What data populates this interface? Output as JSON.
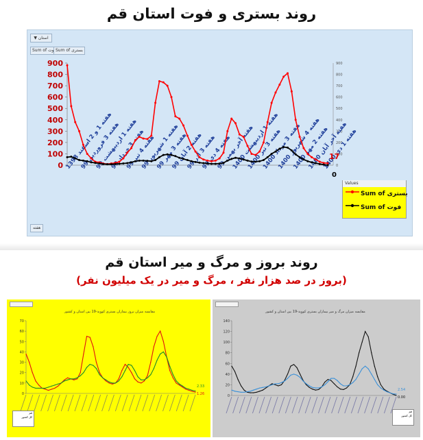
{
  "title_top": "روند بستری و فوت استان قم",
  "title_bottom": "روند بروز و مرگ و میر استان قم",
  "subtitle_bottom": "(بروز در صد هزار نفر ، مرگ و میر در یک میلیون نفر)",
  "top_panel": {
    "filter_label": "استان",
    "tags": [
      "Sum of فوت",
      "Sum of بستری"
    ],
    "week_button": "هفته",
    "legend_title": "Values",
    "legend": [
      {
        "label": "Sum of بستری",
        "color": "#ff0000"
      },
      {
        "label": "Sum of فوت",
        "color": "#000000"
      }
    ],
    "last_value_hosp": "17",
    "last_value_death": "0"
  },
  "chart_data": [
    {
      "type": "line",
      "ylim": [
        0,
        900
      ],
      "y2lim": [
        0,
        900
      ],
      "yticks": [
        0,
        100,
        200,
        300,
        400,
        500,
        600,
        700,
        800,
        900
      ],
      "y2ticks": [
        0,
        100,
        200,
        300,
        400,
        500,
        600,
        700,
        800,
        900
      ],
      "x_tick_labels": [
        "هفته 1 و 2 اسفند 1398",
        "هفته 3 فروردین 99",
        "هفته 1 اردیبهشت 99",
        "هفته 3 خرداد 99",
        "هفته 4 تیر 99",
        "هفته 1 شهریور 99",
        "هفته 3 مهر 99",
        "هفته 2 آبان 99",
        "هفته 3 آذر 99",
        "هفته 4 دی 99",
        "هفته آخر بهمن 99",
        "هفته 1 اردیبهشت 1400",
        "هفته 3 تیر 1400",
        "هفته 3 مرداد 1400",
        "هفته 4 شهریور 1400",
        "هفته 2 مهر 1400",
        "هفته آخر آبان 1400",
        "هفته 1 دی 1400"
      ],
      "series": [
        {
          "name": "Sum of بستری",
          "color": "#ff0000",
          "values": [
            880,
            520,
            380,
            300,
            180,
            100,
            60,
            30,
            25,
            15,
            10,
            15,
            20,
            30,
            60,
            110,
            150,
            220,
            250,
            235,
            230,
            260,
            550,
            740,
            730,
            700,
            600,
            430,
            410,
            350,
            260,
            180,
            120,
            70,
            50,
            40,
            35,
            40,
            60,
            110,
            300,
            410,
            370,
            270,
            250,
            170,
            100,
            90,
            120,
            200,
            380,
            550,
            640,
            710,
            780,
            810,
            650,
            400,
            250,
            150,
            100,
            70,
            50,
            30,
            20,
            17
          ]
        },
        {
          "name": "Sum of فوت",
          "color": "#000000",
          "values": [
            70,
            75,
            60,
            45,
            40,
            35,
            25,
            20,
            15,
            10,
            8,
            8,
            10,
            12,
            15,
            18,
            25,
            35,
            40,
            40,
            38,
            35,
            45,
            70,
            90,
            95,
            90,
            80,
            65,
            55,
            45,
            35,
            28,
            22,
            18,
            15,
            12,
            12,
            14,
            20,
            40,
            55,
            65,
            60,
            50,
            40,
            32,
            30,
            35,
            45,
            70,
            100,
            120,
            145,
            160,
            155,
            130,
            95,
            70,
            50,
            35,
            25,
            18,
            10,
            5,
            0
          ]
        }
      ]
    },
    {
      "type": "line",
      "title": "مقایسه میزان بروز بیماران بستری کووید-19 بین استان و کشور",
      "ylim": [
        0,
        70
      ],
      "yticks": [
        0,
        10,
        20,
        30,
        40,
        50,
        60,
        70
      ],
      "end_labels": [
        "2.33",
        "1.26"
      ],
      "legend": [
        "قم",
        "کل کشور"
      ],
      "series": [
        {
          "name": "قم",
          "color": "#e01010",
          "values": [
            38,
            30,
            20,
            12,
            8,
            5,
            4,
            3,
            4,
            5,
            7,
            10,
            13,
            15,
            14,
            13,
            14,
            20,
            38,
            55,
            54,
            45,
            30,
            20,
            15,
            12,
            10,
            9,
            10,
            14,
            22,
            28,
            25,
            20,
            14,
            11,
            10,
            12,
            17,
            30,
            45,
            55,
            60,
            50,
            35,
            22,
            15,
            10,
            8,
            6,
            4,
            3,
            2,
            1.26
          ]
        },
        {
          "name": "کل کشور",
          "color": "#1a8a2a",
          "values": [
            12,
            8,
            6,
            5,
            5,
            5,
            5,
            6,
            7,
            8,
            9,
            10,
            12,
            13,
            14,
            14,
            15,
            17,
            20,
            25,
            28,
            27,
            24,
            18,
            15,
            13,
            11,
            10,
            10,
            12,
            16,
            22,
            28,
            27,
            22,
            16,
            13,
            13,
            15,
            18,
            24,
            32,
            38,
            40,
            35,
            26,
            18,
            12,
            9,
            7,
            5,
            4,
            3,
            2.33
          ]
        }
      ]
    },
    {
      "type": "line",
      "title": "مقایسه میزان مرگ و میر بیماران بستری کووید-19 بین استان و کشور",
      "ylim": [
        0,
        140
      ],
      "yticks": [
        0,
        20,
        40,
        60,
        80,
        100,
        120,
        140
      ],
      "end_labels": [
        "2.54",
        "0.00"
      ],
      "legend": [
        "قم",
        "کل کشور"
      ],
      "series": [
        {
          "name": "قم",
          "color": "#111111",
          "values": [
            55,
            45,
            30,
            18,
            10,
            6,
            5,
            5,
            6,
            8,
            10,
            14,
            18,
            22,
            20,
            18,
            20,
            28,
            40,
            55,
            58,
            52,
            40,
            28,
            20,
            15,
            12,
            10,
            11,
            16,
            25,
            30,
            28,
            22,
            16,
            12,
            11,
            14,
            20,
            35,
            55,
            80,
            100,
            120,
            110,
            80,
            55,
            35,
            20,
            12,
            8,
            5,
            2,
            0
          ]
        },
        {
          "name": "کل کشور",
          "color": "#3a90d8",
          "values": [
            10,
            8,
            7,
            6,
            6,
            7,
            8,
            10,
            12,
            14,
            15,
            16,
            18,
            20,
            22,
            22,
            24,
            27,
            32,
            38,
            40,
            38,
            34,
            27,
            22,
            18,
            15,
            14,
            14,
            16,
            20,
            26,
            32,
            32,
            28,
            22,
            18,
            18,
            20,
            24,
            30,
            40,
            50,
            55,
            50,
            40,
            30,
            20,
            14,
            10,
            7,
            5,
            3,
            2.54
          ]
        }
      ]
    }
  ]
}
